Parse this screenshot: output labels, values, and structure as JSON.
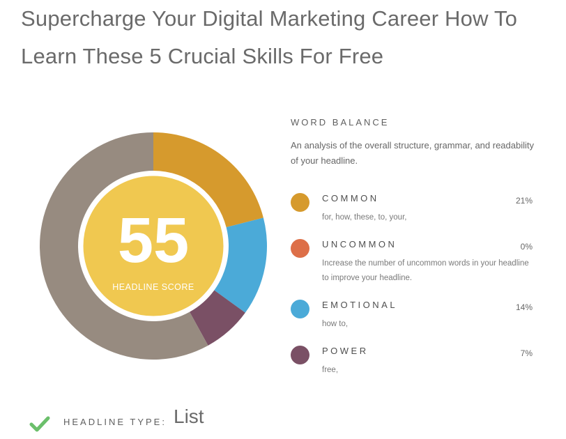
{
  "headline": "Supercharge Your Digital Marketing Career How To Learn These 5 Crucial Skills For Free",
  "score": {
    "value": "55",
    "label": "HEADLINE SCORE",
    "ring_colors": {
      "common": "#d69a2d",
      "emotional": "#4baad8",
      "power": "#7a5065",
      "remainder": "#978b80",
      "center": "#f0c850",
      "center_border": "#ffffff"
    }
  },
  "word_balance": {
    "title": "WORD BALANCE",
    "description": "An analysis of the overall structure, grammar, and readability of your headline.",
    "categories": [
      {
        "name": "COMMON",
        "percent": "21%",
        "value": 21,
        "words": "for, how, these, to, your,",
        "color": "#d69a2d"
      },
      {
        "name": "UNCOMMON",
        "percent": "0%",
        "value": 0,
        "words": "Increase the number of uncommon words in your headline to improve your headline.",
        "color": "#dd6f48"
      },
      {
        "name": "EMOTIONAL",
        "percent": "14%",
        "value": 14,
        "words": "how to,",
        "color": "#4baad8"
      },
      {
        "name": "POWER",
        "percent": "7%",
        "value": 7,
        "words": "free,",
        "color": "#7a5065"
      }
    ]
  },
  "headline_type": {
    "label": "HEADLINE TYPE:",
    "value": "List",
    "icon": "check-icon",
    "icon_color": "#6bbf6b"
  }
}
